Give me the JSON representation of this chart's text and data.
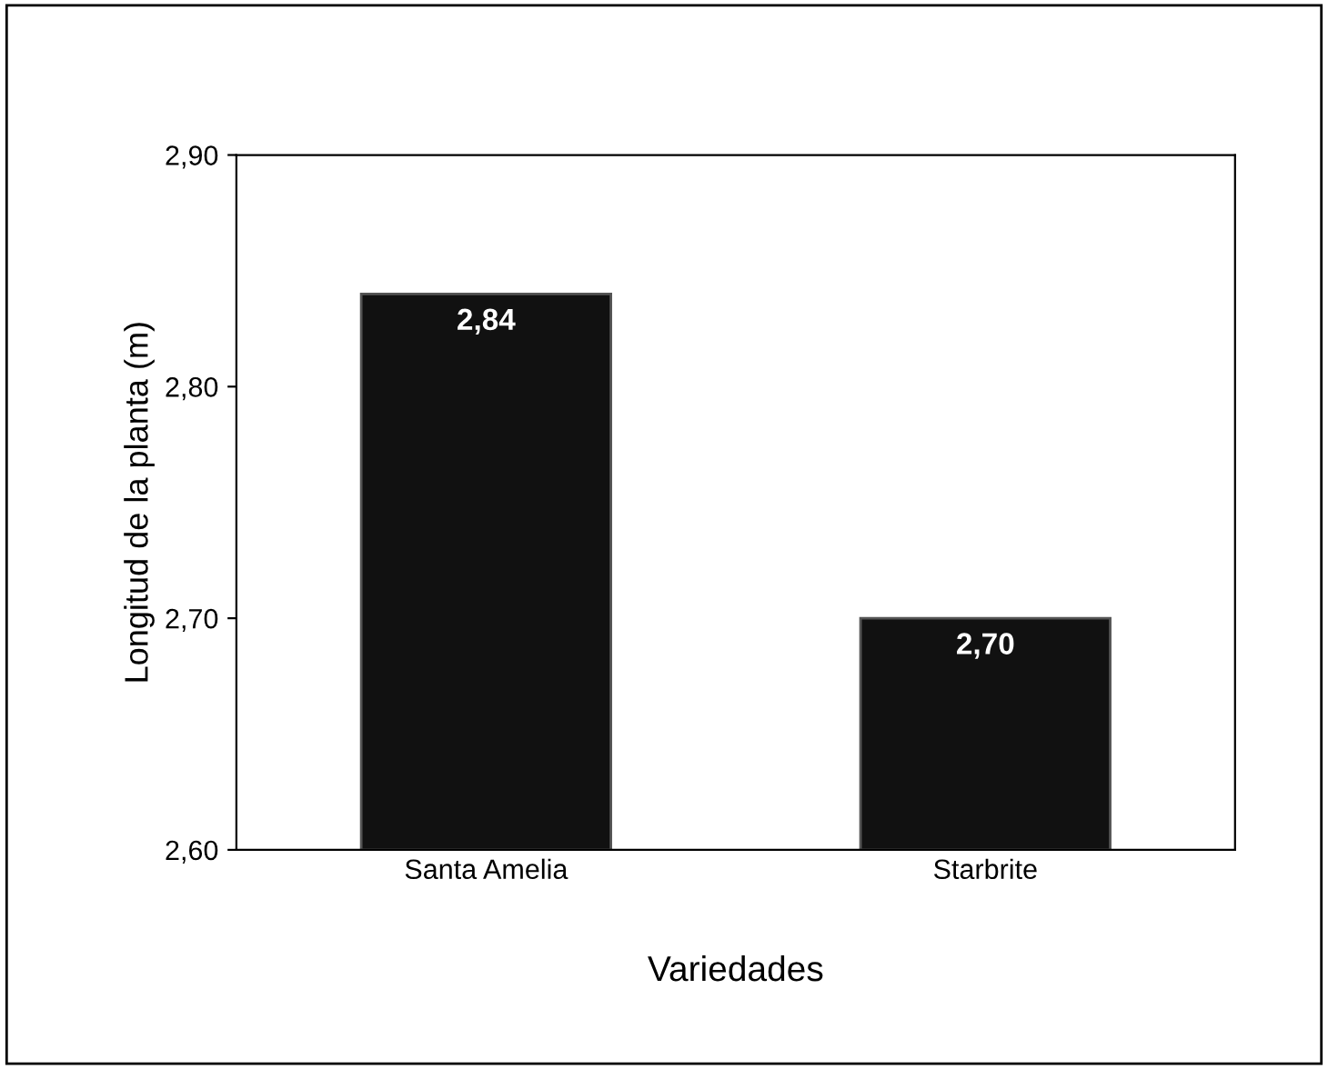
{
  "chart_data": {
    "type": "bar",
    "xlabel": "Variedades",
    "ylabel": "Longitud de la planta (m)",
    "categories": [
      "Santa Amelia",
      "Starbrite"
    ],
    "values": [
      2.84,
      2.7
    ],
    "value_labels": [
      "2,84",
      "2,70"
    ],
    "color": "#111111",
    "ylim": [
      2.6,
      2.9
    ],
    "yticks": [
      {
        "value": 2.6,
        "label": "2,60"
      },
      {
        "value": 2.7,
        "label": "2,70"
      },
      {
        "value": 2.8,
        "label": "2,80"
      },
      {
        "value": 2.9,
        "label": "2,90"
      }
    ],
    "grid": false
  }
}
